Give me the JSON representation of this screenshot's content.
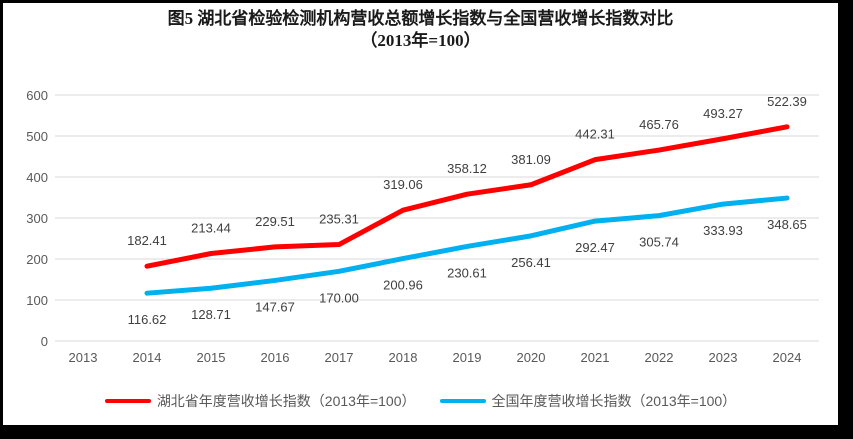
{
  "title": {
    "line1": "图5 湖北省检验检测机构营收总额增长指数与全国营收增长指数对比",
    "line2": "（2013年=100）"
  },
  "colors": {
    "hubei_line": "#FF0000",
    "national_line": "#00B0F0",
    "gridline": "#D9D9D9",
    "axis_label": "#595959",
    "data_label": "#404040",
    "frame_border": "#000000"
  },
  "chart_data": {
    "type": "line",
    "title": "图5 湖北省检验检测机构营收总额增长指数与全国营收增长指数对比（2013年=100）",
    "categories": [
      "2013",
      "2014",
      "2015",
      "2016",
      "2017",
      "2018",
      "2019",
      "2020",
      "2021",
      "2022",
      "2023",
      "2024"
    ],
    "series": [
      {
        "name": "湖北省年度营收增长指数（2013年=100）",
        "color": "#FF0000",
        "label_position": "above",
        "values": [
          null,
          182.41,
          213.44,
          229.51,
          235.31,
          319.06,
          358.12,
          381.09,
          442.31,
          465.76,
          493.27,
          522.39
        ]
      },
      {
        "name": "全国年度营收增长指数（2013年=100）",
        "color": "#00B0F0",
        "label_position": "below",
        "values": [
          null,
          116.62,
          128.71,
          147.67,
          170.0,
          200.96,
          230.61,
          256.41,
          292.47,
          305.74,
          333.93,
          348.65
        ]
      }
    ],
    "xlabel": "",
    "ylabel": "",
    "ylim": [
      0,
      600
    ],
    "y_ticks": [
      0,
      100,
      200,
      300,
      400,
      500,
      600
    ],
    "grid": true,
    "data_labels": true,
    "data_label_decimals": 2,
    "legend_position": "bottom"
  }
}
